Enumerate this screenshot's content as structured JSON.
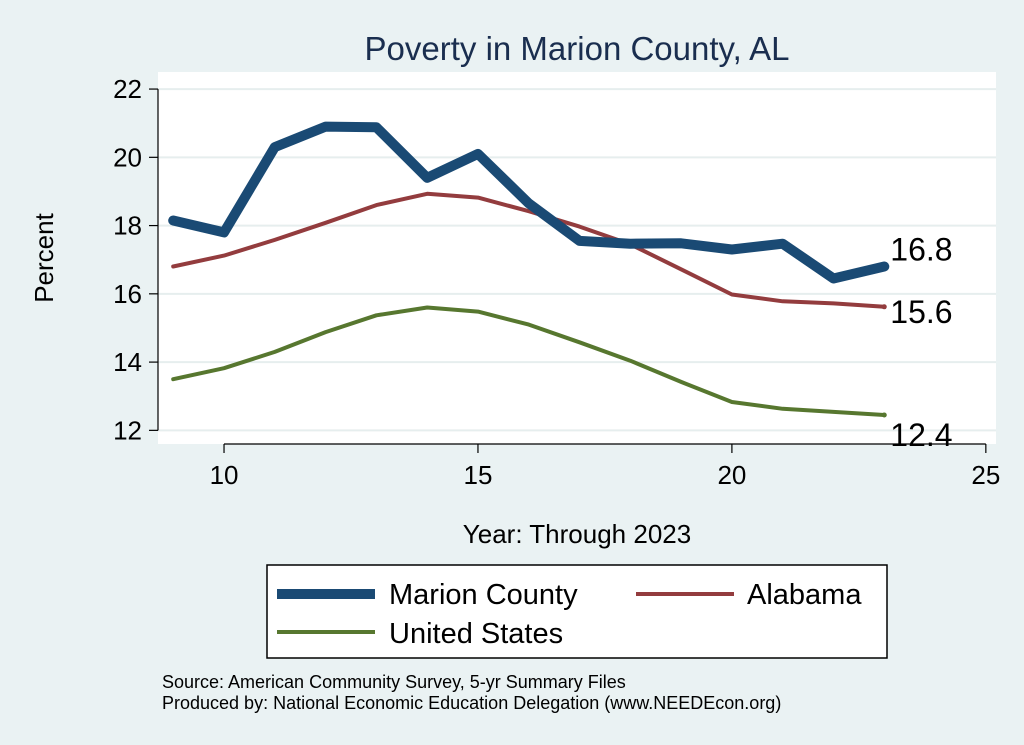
{
  "chart_data": {
    "type": "line",
    "title": "Poverty in Marion County, AL",
    "xlabel": "Year: Through 2023",
    "ylabel": "Percent",
    "xlim": [
      8.7,
      25.2
    ],
    "ylim": [
      11.6,
      22.5
    ],
    "xticks": [
      10,
      15,
      20,
      25
    ],
    "yticks": [
      12,
      14,
      16,
      18,
      20,
      22
    ],
    "x": [
      9,
      10,
      11,
      12,
      13,
      14,
      15,
      16,
      17,
      18,
      19,
      20,
      21,
      22,
      23
    ],
    "series": [
      {
        "name": "Marion County",
        "color": "#1a4a74",
        "width": 10,
        "values": [
          18.15,
          17.8,
          20.3,
          20.9,
          20.88,
          19.4,
          20.1,
          18.65,
          17.55,
          17.47,
          17.48,
          17.3,
          17.47,
          16.45,
          16.8
        ],
        "end_label": "16.8"
      },
      {
        "name": "Alabama",
        "color": "#933c3e",
        "width": 4,
        "values": [
          16.8,
          17.12,
          17.58,
          18.08,
          18.6,
          18.93,
          18.82,
          18.42,
          17.97,
          17.45,
          16.72,
          15.98,
          15.78,
          15.72,
          15.62
        ],
        "end_label": "15.6"
      },
      {
        "name": "United States",
        "color": "#57772f",
        "width": 4,
        "values": [
          13.5,
          13.82,
          14.3,
          14.88,
          15.37,
          15.6,
          15.48,
          15.1,
          14.58,
          14.04,
          13.42,
          12.83,
          12.63,
          12.54,
          12.45
        ],
        "end_label": "12.4"
      }
    ],
    "legend_position": "bottom",
    "source": "Source: American Community Survey, 5-yr Summary Files",
    "producer": "Produced by: National Economic Education Delegation (www.NEEDEcon.org)"
  }
}
